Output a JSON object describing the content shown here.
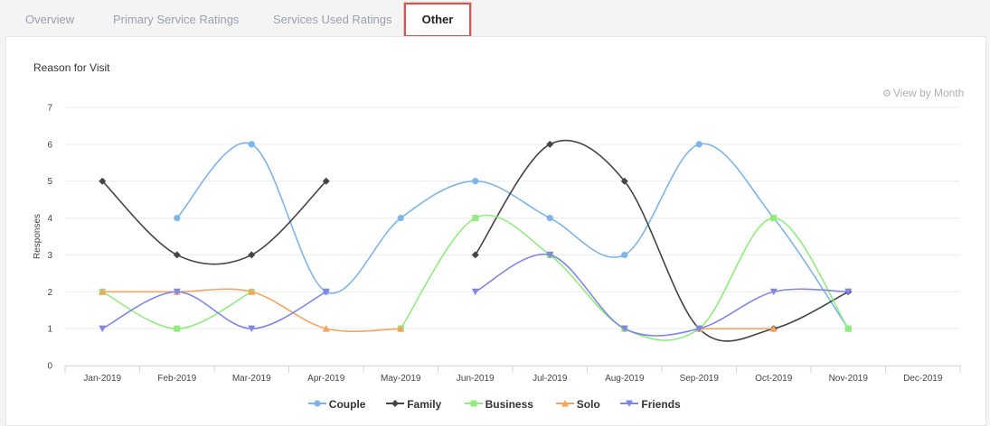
{
  "tabs": [
    {
      "label": "Overview"
    },
    {
      "label": "Primary Service Ratings"
    },
    {
      "label": "Services Used Ratings"
    },
    {
      "label": "Other"
    }
  ],
  "active_tab": "Other",
  "view_by": {
    "label": "View by Month",
    "icon": "gear-icon"
  },
  "chart_data": {
    "type": "line",
    "title": "Reason for Visit",
    "xlabel": "",
    "ylabel": "Responses",
    "ylim": [
      0,
      7
    ],
    "yticks": [
      0,
      1,
      2,
      3,
      4,
      5,
      6,
      7
    ],
    "grid": true,
    "legend_position": "bottom",
    "categories": [
      "Jan-2019",
      "Feb-2019",
      "Mar-2019",
      "Apr-2019",
      "May-2019",
      "Jun-2019",
      "Jul-2019",
      "Aug-2019",
      "Sep-2019",
      "Oct-2019",
      "Nov-2019",
      "Dec-2019"
    ],
    "series": [
      {
        "name": "Couple",
        "color": "#7cb5ec",
        "marker": "circle",
        "values": [
          null,
          4,
          6,
          2,
          4,
          5,
          4,
          3,
          6,
          4,
          1,
          null
        ]
      },
      {
        "name": "Family",
        "color": "#434348",
        "marker": "diamond",
        "values": [
          5,
          3,
          3,
          5,
          null,
          3,
          6,
          5,
          1,
          1,
          2,
          null
        ]
      },
      {
        "name": "Business",
        "color": "#90ed7d",
        "marker": "square",
        "values": [
          2,
          1,
          2,
          null,
          1,
          4,
          3,
          1,
          1,
          4,
          1,
          null
        ]
      },
      {
        "name": "Solo",
        "color": "#f7a35c",
        "marker": "triangle",
        "values": [
          2,
          2,
          2,
          1,
          1,
          null,
          null,
          null,
          1,
          1,
          null,
          null
        ]
      },
      {
        "name": "Friends",
        "color": "#8085e9",
        "marker": "triangle-down",
        "values": [
          1,
          2,
          1,
          2,
          null,
          2,
          3,
          1,
          1,
          2,
          2,
          null
        ]
      }
    ]
  }
}
